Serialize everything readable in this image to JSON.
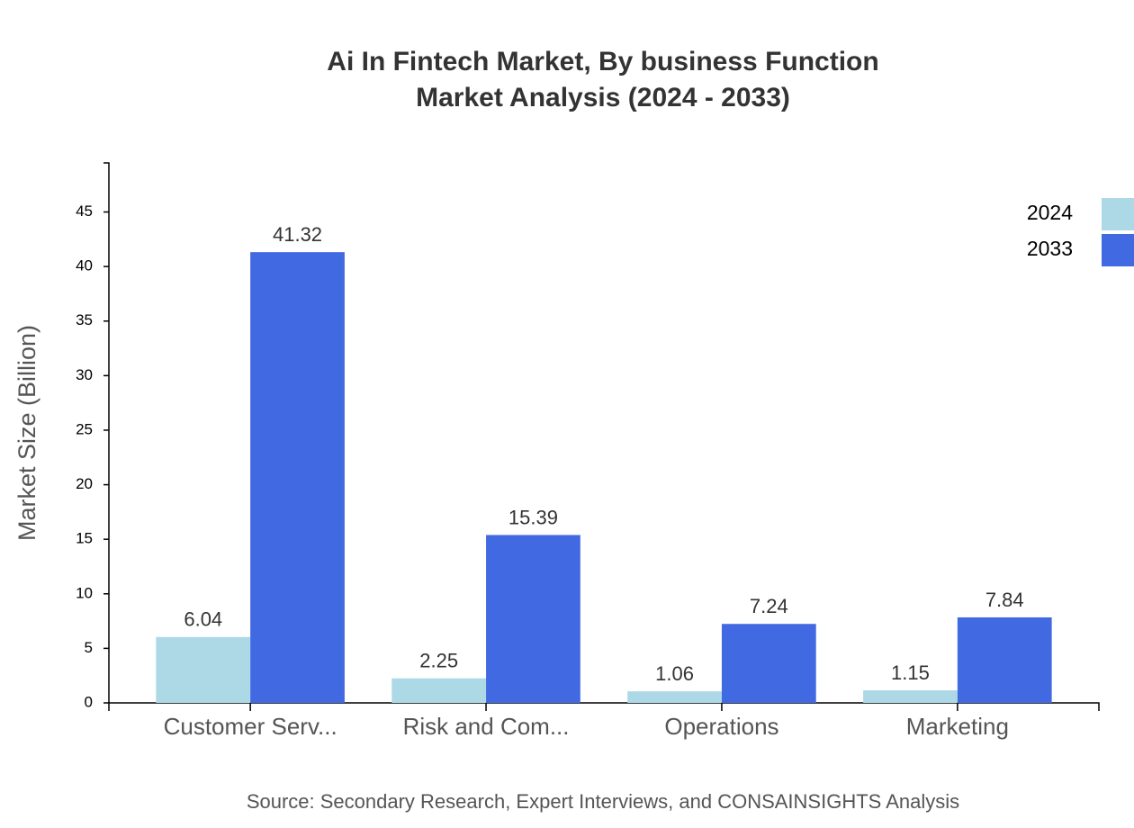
{
  "chart_data": {
    "type": "bar",
    "title": "Ai In Fintech Market, By business Function",
    "subtitle": "Market Analysis (2024 - 2033)",
    "y_label": "Market Size (Billion)",
    "source": "Source: Secondary Research, Expert Interviews, and CONSAINSIGHTS Analysis",
    "categories": [
      "Customer Serv...",
      "Risk and Com...",
      "Operations",
      "Marketing"
    ],
    "series": [
      {
        "name": "2024",
        "color": "#add8e6",
        "values": [
          6.04,
          2.25,
          1.06,
          1.15
        ]
      },
      {
        "name": "2033",
        "color": "#4169e1",
        "values": [
          41.32,
          15.39,
          7.24,
          7.84
        ]
      }
    ],
    "ylim": [
      0,
      49.5
    ],
    "yticks": [
      0,
      5,
      10,
      15,
      20,
      25,
      30,
      35,
      40,
      45
    ],
    "legend": "top-right"
  }
}
